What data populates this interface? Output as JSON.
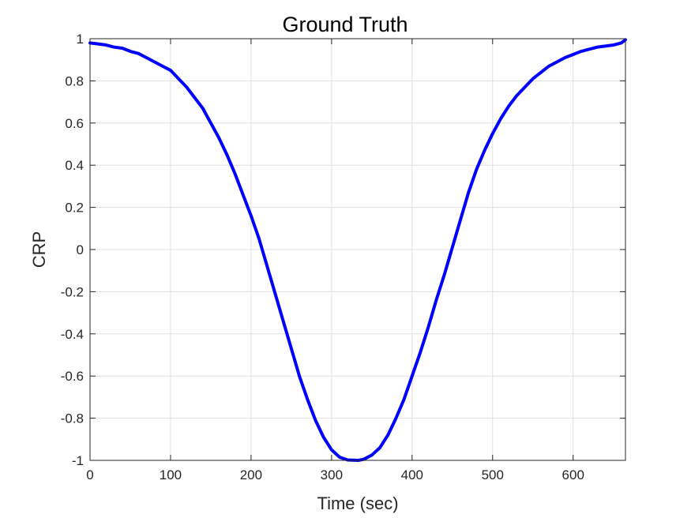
{
  "chart_data": {
    "type": "line",
    "title": "Ground Truth",
    "xlabel": "Time (sec)",
    "ylabel": "CRP",
    "xlim": [
      0,
      665
    ],
    "ylim": [
      -1,
      1
    ],
    "xticks": [
      "0",
      "100",
      "200",
      "300",
      "400",
      "500",
      "600"
    ],
    "yticks": [
      "1",
      "0.8",
      "0.6",
      "0.4",
      "0.2",
      "0",
      "-0.2",
      "-0.4",
      "-0.6",
      "-0.8",
      "-1"
    ],
    "grid": true,
    "line_color": "#0000ff",
    "series": [
      {
        "x": [
          0,
          10,
          20,
          30,
          40,
          50,
          60,
          70,
          80,
          90,
          100,
          110,
          120,
          130,
          140,
          150,
          160,
          170,
          180,
          190,
          200,
          210,
          220,
          230,
          240,
          250,
          260,
          270,
          280,
          290,
          300,
          310,
          320,
          333,
          340,
          350,
          360,
          370,
          380,
          390,
          400,
          410,
          420,
          430,
          440,
          450,
          460,
          470,
          480,
          490,
          500,
          510,
          520,
          530,
          540,
          550,
          560,
          570,
          580,
          590,
          600,
          610,
          620,
          630,
          640,
          650,
          660,
          665
        ],
        "y": [
          0.98,
          0.975,
          0.97,
          0.96,
          0.955,
          0.94,
          0.93,
          0.91,
          0.89,
          0.87,
          0.85,
          0.81,
          0.77,
          0.72,
          0.67,
          0.6,
          0.53,
          0.45,
          0.36,
          0.26,
          0.16,
          0.05,
          -0.08,
          -0.21,
          -0.34,
          -0.47,
          -0.6,
          -0.71,
          -0.81,
          -0.89,
          -0.95,
          -0.985,
          -0.998,
          -1.0,
          -0.995,
          -0.975,
          -0.94,
          -0.88,
          -0.8,
          -0.71,
          -0.6,
          -0.49,
          -0.37,
          -0.24,
          -0.12,
          0.01,
          0.14,
          0.27,
          0.38,
          0.47,
          0.55,
          0.62,
          0.68,
          0.73,
          0.77,
          0.81,
          0.84,
          0.87,
          0.89,
          0.91,
          0.925,
          0.94,
          0.95,
          0.96,
          0.965,
          0.97,
          0.98,
          0.995
        ]
      }
    ]
  }
}
